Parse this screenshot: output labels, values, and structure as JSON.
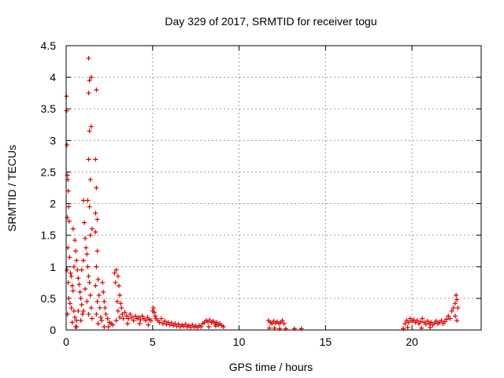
{
  "chart_data": {
    "type": "scatter",
    "title": "Day 329 of 2017, SRMTID for receiver togu",
    "xlabel": "GPS time / hours",
    "ylabel": "SRMTID / TECUs",
    "xlim": [
      0,
      24
    ],
    "ylim": [
      0,
      4.5
    ],
    "x_ticks": [
      0,
      5,
      10,
      15,
      20
    ],
    "x_tick_labels": [
      "0",
      "5",
      "10",
      "15",
      "20"
    ],
    "y_ticks": [
      0,
      0.5,
      1,
      1.5,
      2,
      2.5,
      3,
      3.5,
      4,
      4.5
    ],
    "y_tick_labels": [
      "0",
      "0.5",
      "1",
      "1.5",
      "2",
      "2.5",
      "3",
      "3.5",
      "4",
      "4.5"
    ],
    "grid": true,
    "marker": "+",
    "color": "#e00000",
    "series": [
      {
        "name": "togu",
        "points": [
          [
            0.02,
            3.7
          ],
          [
            0.03,
            3.47
          ],
          [
            0.05,
            2.93
          ],
          [
            0.08,
            2.45
          ],
          [
            0.1,
            2.38
          ],
          [
            0.12,
            2.2
          ],
          [
            0.15,
            1.95
          ],
          [
            0.07,
            1.78
          ],
          [
            0.18,
            1.72
          ],
          [
            0.1,
            1.3
          ],
          [
            0.2,
            1.15
          ],
          [
            0.05,
            0.95
          ],
          [
            0.25,
            0.9
          ],
          [
            0.3,
            0.85
          ],
          [
            0.12,
            0.75
          ],
          [
            0.35,
            0.7
          ],
          [
            0.4,
            0.62
          ],
          [
            0.15,
            0.5
          ],
          [
            0.22,
            0.42
          ],
          [
            0.3,
            0.35
          ],
          [
            0.45,
            0.3
          ],
          [
            0.08,
            0.25
          ],
          [
            0.5,
            0.2
          ],
          [
            0.35,
            0.12
          ],
          [
            0.55,
            0.05
          ],
          [
            0.6,
            0.15
          ],
          [
            0.4,
            1.6
          ],
          [
            0.5,
            1.42
          ],
          [
            0.55,
            1.25
          ],
          [
            0.6,
            1.1
          ],
          [
            0.45,
            1.0
          ],
          [
            0.65,
            0.95
          ],
          [
            0.7,
            0.82
          ],
          [
            0.75,
            0.72
          ],
          [
            0.8,
            0.6
          ],
          [
            0.85,
            0.5
          ],
          [
            0.9,
            0.4
          ],
          [
            0.7,
            0.3
          ],
          [
            0.95,
            0.25
          ],
          [
            0.85,
            0.15
          ],
          [
            0.6,
            0.05
          ],
          [
            1.0,
            2.05
          ],
          [
            1.05,
            1.7
          ],
          [
            1.1,
            1.45
          ],
          [
            1.15,
            1.3
          ],
          [
            1.2,
            1.2
          ],
          [
            1.0,
            1.1
          ],
          [
            1.25,
            1.0
          ],
          [
            0.9,
            0.95
          ],
          [
            1.3,
            0.85
          ],
          [
            1.35,
            0.75
          ],
          [
            1.1,
            0.65
          ],
          [
            1.4,
            0.55
          ],
          [
            1.2,
            0.45
          ],
          [
            1.45,
            0.35
          ],
          [
            1.3,
            0.25
          ],
          [
            1.5,
            0.18
          ],
          [
            1.0,
            0.3
          ],
          [
            1.3,
            4.3
          ],
          [
            1.35,
            3.95
          ],
          [
            1.45,
            4.0
          ],
          [
            1.3,
            3.75
          ],
          [
            1.35,
            3.15
          ],
          [
            1.45,
            3.22
          ],
          [
            1.3,
            2.7
          ],
          [
            1.4,
            2.38
          ],
          [
            1.25,
            2.05
          ],
          [
            1.35,
            1.95
          ],
          [
            1.5,
            1.6
          ],
          [
            1.4,
            1.5
          ],
          [
            1.75,
            3.8
          ],
          [
            1.7,
            2.7
          ],
          [
            1.75,
            2.25
          ],
          [
            1.7,
            1.85
          ],
          [
            1.8,
            1.75
          ],
          [
            1.7,
            1.55
          ],
          [
            1.8,
            1.25
          ],
          [
            1.75,
            1.0
          ],
          [
            1.85,
            0.8
          ],
          [
            1.7,
            0.7
          ],
          [
            1.9,
            0.55
          ],
          [
            1.8,
            0.45
          ],
          [
            1.95,
            0.35
          ],
          [
            1.75,
            0.25
          ],
          [
            2.0,
            0.2
          ],
          [
            1.85,
            0.1
          ],
          [
            2.05,
            0.15
          ],
          [
            2.1,
            0.75
          ],
          [
            2.15,
            0.6
          ],
          [
            2.2,
            0.45
          ],
          [
            2.25,
            0.35
          ],
          [
            2.3,
            0.25
          ],
          [
            2.4,
            0.18
          ],
          [
            2.5,
            0.12
          ],
          [
            2.6,
            0.1
          ],
          [
            2.7,
            0.08
          ],
          [
            2.2,
            0.05
          ],
          [
            2.45,
            0.05
          ],
          [
            2.8,
            0.9
          ],
          [
            2.85,
            0.75
          ],
          [
            2.9,
            0.95
          ],
          [
            3.0,
            0.85
          ],
          [
            3.05,
            0.7
          ],
          [
            3.1,
            0.55
          ],
          [
            2.95,
            0.45
          ],
          [
            3.15,
            0.42
          ],
          [
            3.2,
            0.35
          ],
          [
            3.0,
            0.3
          ],
          [
            3.25,
            0.25
          ],
          [
            3.1,
            0.2
          ],
          [
            3.3,
            0.18
          ],
          [
            2.9,
            0.15
          ],
          [
            3.4,
            0.28
          ],
          [
            3.5,
            0.22
          ],
          [
            3.6,
            0.18
          ],
          [
            3.7,
            0.25
          ],
          [
            3.8,
            0.2
          ],
          [
            3.9,
            0.15
          ],
          [
            4.0,
            0.22
          ],
          [
            4.1,
            0.18
          ],
          [
            4.2,
            0.2
          ],
          [
            4.3,
            0.16
          ],
          [
            4.4,
            0.22
          ],
          [
            4.5,
            0.18
          ],
          [
            4.6,
            0.15
          ],
          [
            4.7,
            0.2
          ],
          [
            4.8,
            0.17
          ],
          [
            4.9,
            0.15
          ],
          [
            5.0,
            0.3
          ],
          [
            5.05,
            0.35
          ],
          [
            5.1,
            0.28
          ],
          [
            5.15,
            0.22
          ],
          [
            5.2,
            0.18
          ],
          [
            3.55,
            0.1
          ],
          [
            4.25,
            0.1
          ],
          [
            4.75,
            0.08
          ],
          [
            5.3,
            0.15
          ],
          [
            5.4,
            0.12
          ],
          [
            5.5,
            0.18
          ],
          [
            5.6,
            0.1
          ],
          [
            5.7,
            0.14
          ],
          [
            5.8,
            0.09
          ],
          [
            5.9,
            0.12
          ],
          [
            6.0,
            0.08
          ],
          [
            6.1,
            0.11
          ],
          [
            6.2,
            0.07
          ],
          [
            6.3,
            0.1
          ],
          [
            6.4,
            0.06
          ],
          [
            6.5,
            0.09
          ],
          [
            6.6,
            0.05
          ],
          [
            6.7,
            0.08
          ],
          [
            6.8,
            0.06
          ],
          [
            6.9,
            0.09
          ],
          [
            7.0,
            0.05
          ],
          [
            7.1,
            0.07
          ],
          [
            7.2,
            0.04
          ],
          [
            7.3,
            0.08
          ],
          [
            7.4,
            0.05
          ],
          [
            7.5,
            0.06
          ],
          [
            7.6,
            0.04
          ],
          [
            7.7,
            0.07
          ],
          [
            7.8,
            0.05
          ],
          [
            7.9,
            0.1
          ],
          [
            8.0,
            0.12
          ],
          [
            8.1,
            0.15
          ],
          [
            8.2,
            0.13
          ],
          [
            8.3,
            0.16
          ],
          [
            8.4,
            0.12
          ],
          [
            8.5,
            0.14
          ],
          [
            8.6,
            0.1
          ],
          [
            8.7,
            0.12
          ],
          [
            8.8,
            0.08
          ],
          [
            8.9,
            0.1
          ],
          [
            9.0,
            0.07
          ],
          [
            9.1,
            0.05
          ],
          [
            8.25,
            0.05
          ],
          [
            8.65,
            0.06
          ],
          [
            11.7,
            0.15
          ],
          [
            11.8,
            0.12
          ],
          [
            11.9,
            0.1
          ],
          [
            12.0,
            0.14
          ],
          [
            12.1,
            0.11
          ],
          [
            12.2,
            0.13
          ],
          [
            12.3,
            0.1
          ],
          [
            12.4,
            0.12
          ],
          [
            12.5,
            0.15
          ],
          [
            12.6,
            0.1
          ],
          [
            11.75,
            0.03
          ],
          [
            12.05,
            0.03
          ],
          [
            12.35,
            0.02
          ],
          [
            12.7,
            0.02
          ],
          [
            13.2,
            0.02
          ],
          [
            13.6,
            0.02
          ],
          [
            19.5,
            0.02
          ],
          [
            19.6,
            0.1
          ],
          [
            19.7,
            0.15
          ],
          [
            19.8,
            0.12
          ],
          [
            19.9,
            0.18
          ],
          [
            20.0,
            0.14
          ],
          [
            20.1,
            0.16
          ],
          [
            20.2,
            0.12
          ],
          [
            20.3,
            0.15
          ],
          [
            20.4,
            0.1
          ],
          [
            20.5,
            0.13
          ],
          [
            20.6,
            0.18
          ],
          [
            20.7,
            0.12
          ],
          [
            20.8,
            0.09
          ],
          [
            20.9,
            0.14
          ],
          [
            21.0,
            0.1
          ],
          [
            21.1,
            0.12
          ],
          [
            21.2,
            0.08
          ],
          [
            21.3,
            0.11
          ],
          [
            21.4,
            0.14
          ],
          [
            21.5,
            0.1
          ],
          [
            21.6,
            0.12
          ],
          [
            21.7,
            0.15
          ],
          [
            21.8,
            0.1
          ],
          [
            21.9,
            0.13
          ],
          [
            22.0,
            0.17
          ],
          [
            22.1,
            0.22
          ],
          [
            22.2,
            0.18
          ],
          [
            22.3,
            0.3
          ],
          [
            22.4,
            0.35
          ],
          [
            22.5,
            0.42
          ],
          [
            22.55,
            0.55
          ],
          [
            22.6,
            0.48
          ],
          [
            22.65,
            0.35
          ],
          [
            22.5,
            0.22
          ],
          [
            22.6,
            0.15
          ],
          [
            20.55,
            0.03
          ],
          [
            21.05,
            0.04
          ],
          [
            19.75,
            0.04
          ]
        ]
      }
    ]
  }
}
